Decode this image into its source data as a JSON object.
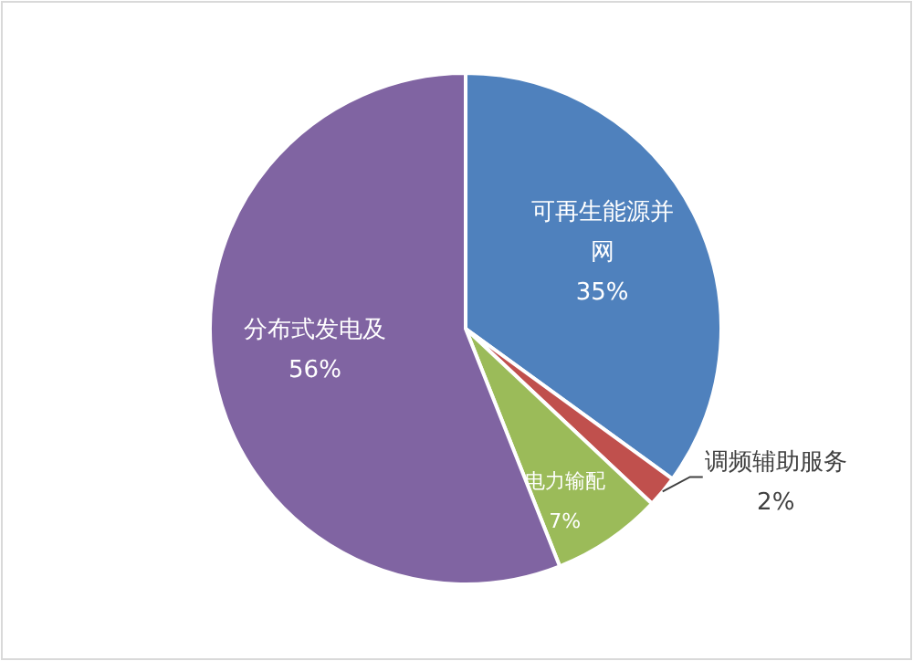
{
  "chart_data": {
    "type": "pie",
    "categories": [
      "可再生能源并网",
      "调频辅助服务",
      "电力输配",
      "分布式发电及"
    ],
    "values": [
      35,
      2,
      7,
      56
    ],
    "value_labels": [
      "35%",
      "2%",
      "7%",
      "56%"
    ],
    "colors": [
      "#4f81bd",
      "#c0504d",
      "#9bbb59",
      "#8064a2"
    ]
  }
}
